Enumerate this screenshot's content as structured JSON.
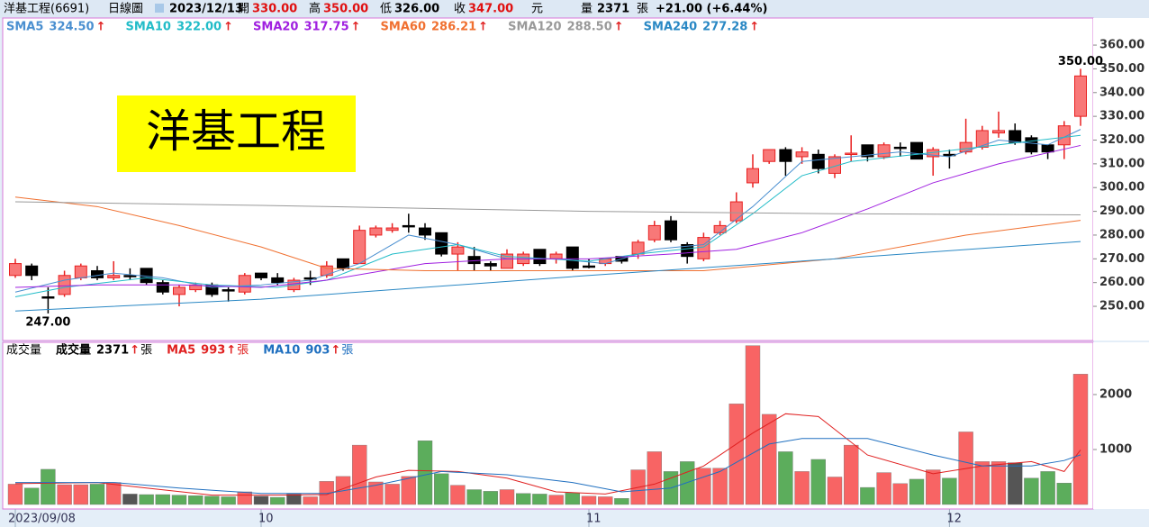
{
  "header": {
    "stock": "洋基工程(6691)",
    "period": "日線圖",
    "date": "2023/12/13",
    "open_label": "開",
    "open": "330.00",
    "high_label": "高",
    "high": "350.00",
    "low_label": "低",
    "low": "326.00",
    "close_label": "收",
    "close": "347.00",
    "currency": "元",
    "volume_label": "量",
    "volume": "2371",
    "volume_unit": "張",
    "change": "+21.00 (+6.44%)"
  },
  "chart_data": [
    {
      "type": "candlestick",
      "title": "洋基工程",
      "title_color": "#ffff00",
      "up_color": "#f87878",
      "up_border": "#e82020",
      "down_color": "#000000",
      "categories": [
        "2023/09/08",
        null,
        null,
        null,
        null,
        null,
        null,
        null,
        null,
        null,
        null,
        null,
        null,
        null,
        null,
        "10",
        null,
        null,
        null,
        null,
        null,
        null,
        null,
        null,
        null,
        null,
        null,
        null,
        null,
        null,
        null,
        null,
        null,
        null,
        null,
        "11",
        null,
        null,
        null,
        null,
        null,
        null,
        null,
        null,
        null,
        null,
        null,
        null,
        null,
        null,
        null,
        null,
        null,
        null,
        null,
        null,
        null,
        "12",
        null,
        null,
        null,
        null,
        null,
        null,
        null,
        null
      ],
      "open": [
        263,
        267,
        254,
        255,
        262,
        265,
        262,
        263,
        266,
        260,
        255,
        257,
        259,
        257,
        256,
        264,
        262,
        257,
        262,
        263,
        270,
        268,
        280,
        282,
        284,
        283,
        281,
        272,
        271,
        268,
        266,
        268,
        274,
        270,
        275,
        267,
        268,
        271,
        272,
        278,
        286,
        276,
        270,
        281,
        286,
        302,
        311,
        316,
        313,
        314,
        306,
        314,
        318,
        313,
        317,
        319,
        313,
        314,
        315,
        317,
        323,
        324,
        321,
        318,
        318,
        330
      ],
      "high": [
        270,
        268,
        258,
        265,
        268,
        267,
        269,
        266,
        266,
        261,
        259,
        260,
        260,
        258,
        264,
        264,
        264,
        262,
        265,
        269,
        270,
        284,
        284,
        285,
        289,
        285,
        281,
        277,
        275,
        269,
        274,
        273,
        274,
        273,
        275,
        270,
        270,
        271,
        278,
        286,
        288,
        277,
        281,
        286,
        298,
        314,
        316,
        317,
        317,
        316,
        314,
        322,
        318,
        319,
        319,
        319,
        317,
        316,
        329,
        326,
        332,
        327,
        322,
        318,
        328,
        350
      ],
      "low": [
        262,
        261,
        247,
        254,
        261,
        261,
        261,
        261,
        259,
        255,
        250,
        256,
        254,
        252,
        255,
        261,
        259,
        256,
        259,
        262,
        265,
        268,
        279,
        281,
        281,
        278,
        271,
        265,
        265,
        265,
        266,
        267,
        267,
        268,
        265,
        266,
        267,
        268,
        270,
        277,
        277,
        268,
        269,
        280,
        285,
        300,
        310,
        305,
        310,
        306,
        304,
        311,
        311,
        312,
        313,
        312,
        305,
        308,
        314,
        316,
        321,
        318,
        314,
        312,
        312,
        326
      ],
      "close": [
        268,
        263,
        254,
        263,
        267,
        262,
        263,
        263,
        260,
        256,
        258,
        259,
        255,
        257,
        263,
        262,
        260,
        261,
        262,
        267,
        266,
        282,
        283,
        283,
        284,
        280,
        272,
        275,
        268,
        267,
        272,
        272,
        268,
        272,
        266,
        267,
        270,
        269,
        277,
        284,
        278,
        271,
        279,
        284,
        294,
        308,
        316,
        311,
        315,
        308,
        313,
        314.5,
        313,
        318,
        317,
        312,
        316,
        314,
        319,
        324,
        324,
        319,
        315,
        315,
        326,
        347
      ],
      "annotations": [
        {
          "label": "350.00",
          "value": 350
        },
        {
          "label": "247.00",
          "value": 247
        }
      ],
      "trend_color": "#e02020",
      "series": [
        {
          "name": "SMA5",
          "value_label": "324.50",
          "trend": "↑",
          "color": "#4a8fd0",
          "x": [
            0,
            3,
            6,
            9,
            12,
            15,
            18,
            21,
            24,
            27,
            30,
            33,
            36,
            39,
            42,
            45,
            48,
            51,
            54,
            57,
            60,
            63,
            65
          ],
          "values": [
            256,
            261,
            264,
            262,
            258,
            259,
            261,
            268,
            280,
            276,
            270,
            270,
            268,
            274,
            276,
            292,
            311,
            313,
            315,
            313,
            320,
            318,
            324.5
          ]
        },
        {
          "name": "SMA10",
          "value_label": "322.00",
          "trend": "↑",
          "color": "#22bcc8",
          "x": [
            0,
            3,
            8,
            12,
            16,
            19,
            23,
            27,
            30,
            35,
            38,
            42,
            45,
            48,
            51,
            55,
            60,
            65
          ],
          "values": [
            254,
            258,
            262,
            259,
            258,
            261,
            272,
            276,
            271,
            269,
            272,
            275,
            289,
            305,
            311,
            314,
            318,
            322
          ]
        },
        {
          "name": "SMA20",
          "value_label": "317.75",
          "trend": "↑",
          "color": "#a020e0",
          "x": [
            0,
            5,
            10,
            15,
            19,
            25,
            30,
            35,
            40,
            44,
            48,
            52,
            56,
            60,
            65
          ],
          "values": [
            258,
            259,
            259,
            258,
            261,
            268,
            270,
            270,
            272,
            274,
            281,
            291,
            302,
            310,
            317.75
          ]
        },
        {
          "name": "SMA60",
          "value_label": "286.21",
          "trend": "↑",
          "color": "#f07030",
          "x": [
            0,
            5,
            10,
            15,
            19,
            25,
            35,
            42,
            50,
            58,
            65
          ],
          "values": [
            296,
            292,
            284,
            275,
            266,
            265,
            265,
            265,
            270,
            280,
            286.21
          ]
        },
        {
          "name": "SMA120",
          "value_label": "288.50",
          "trend": "↑",
          "color": "#999999",
          "x": [
            0,
            15,
            35,
            50,
            65
          ],
          "values": [
            294,
            292.5,
            290,
            289,
            288.5
          ]
        },
        {
          "name": "SMA240",
          "value_label": "277.28",
          "trend": "↑",
          "color": "#2a88c4",
          "x": [
            0,
            15,
            35,
            50,
            65
          ],
          "values": [
            248,
            253,
            263,
            270,
            277.28
          ]
        }
      ],
      "ylim": [
        235.6,
        371.4
      ],
      "yticks": [
        {
          "value": 250,
          "label": "250.00"
        },
        {
          "value": 260,
          "label": "260.00"
        },
        {
          "value": 270,
          "label": "270.00"
        },
        {
          "value": 280,
          "label": "280.00"
        },
        {
          "value": 290,
          "label": "290.00"
        },
        {
          "value": 300,
          "label": "300.00"
        },
        {
          "value": 310,
          "label": "310.00"
        },
        {
          "value": 320,
          "label": "320.00"
        },
        {
          "value": 330,
          "label": "330.00"
        },
        {
          "value": 340,
          "label": "340.00"
        },
        {
          "value": 350,
          "label": "350.00"
        },
        {
          "value": 360,
          "label": "360.00"
        }
      ]
    },
    {
      "type": "bar",
      "title": "成交量",
      "volume_name": "成交量",
      "volume_label": "2371",
      "unit": "張",
      "trend": "↑",
      "trend_color": "#e02020",
      "values": [
        370,
        300,
        640,
        360,
        360,
        370,
        400,
        190,
        180,
        180,
        170,
        160,
        150,
        140,
        230,
        150,
        130,
        190,
        140,
        420,
        510,
        1080,
        410,
        370,
        510,
        1160,
        560,
        350,
        270,
        240,
        270,
        200,
        190,
        170,
        210,
        150,
        140,
        110,
        630,
        960,
        600,
        780,
        660,
        660,
        1830,
        2890,
        1640,
        960,
        600,
        820,
        500,
        1080,
        310,
        580,
        380,
        460,
        630,
        480,
        1320,
        780,
        780,
        760,
        480,
        600,
        390,
        2371
      ],
      "colors": [
        "#f86464",
        "#5cad5c",
        "#5cad5c",
        "#f86464",
        "#f86464",
        "#5cad5c",
        "#f86464",
        "#555555",
        "#5cad5c",
        "#5cad5c",
        "#5cad5c",
        "#5cad5c",
        "#5cad5c",
        "#5cad5c",
        "#f86464",
        "#555555",
        "#5cad5c",
        "#555555",
        "#f86464",
        "#f86464",
        "#f86464",
        "#f86464",
        "#f86464",
        "#f86464",
        "#f86464",
        "#5cad5c",
        "#5cad5c",
        "#f86464",
        "#5cad5c",
        "#5cad5c",
        "#f86464",
        "#5cad5c",
        "#5cad5c",
        "#f86464",
        "#5cad5c",
        "#f86464",
        "#f86464",
        "#5cad5c",
        "#f86464",
        "#f86464",
        "#5cad5c",
        "#5cad5c",
        "#f86464",
        "#f86464",
        "#f86464",
        "#f86464",
        "#f86464",
        "#5cad5c",
        "#f86464",
        "#5cad5c",
        "#f86464",
        "#f86464",
        "#5cad5c",
        "#f86464",
        "#f86464",
        "#5cad5c",
        "#f86464",
        "#5cad5c",
        "#f86464",
        "#f86464",
        "#f86464",
        "#555555",
        "#5cad5c",
        "#5cad5c",
        "#5cad5c",
        "#f86464"
      ],
      "series": [
        {
          "name": "MA5",
          "value_label": "993",
          "color": "#e02020",
          "x": [
            0,
            5,
            8,
            12,
            16,
            19,
            22,
            24,
            27,
            30,
            33,
            36,
            39,
            42,
            45,
            47,
            49,
            52,
            56,
            59,
            62,
            64,
            65
          ],
          "values": [
            380,
            400,
            300,
            170,
            170,
            180,
            500,
            620,
            600,
            480,
            230,
            190,
            370,
            700,
            1300,
            1650,
            1600,
            900,
            560,
            700,
            780,
            600,
            993
          ]
        },
        {
          "name": "MA10",
          "value_label": "903",
          "color": "#2070c0",
          "x": [
            0,
            6,
            10,
            15,
            19,
            22,
            26,
            30,
            34,
            37,
            40,
            43,
            46,
            48,
            52,
            56,
            59,
            62,
            64,
            65
          ],
          "values": [
            400,
            400,
            300,
            200,
            200,
            350,
            600,
            540,
            400,
            230,
            300,
            600,
            1100,
            1200,
            1200,
            900,
            700,
            700,
            800,
            903
          ]
        }
      ],
      "ylim": [
        0,
        2950
      ],
      "yticks": [
        1000,
        2000
      ]
    }
  ]
}
